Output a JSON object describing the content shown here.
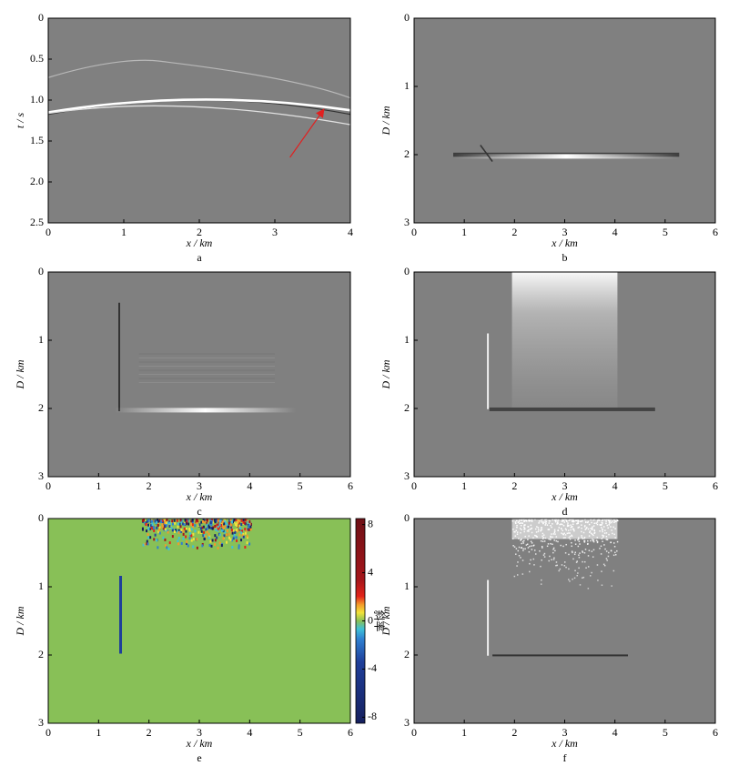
{
  "chart_data": [
    {
      "type": "image",
      "caption": "a",
      "xlabel": "x / km",
      "ylabel": "t / s",
      "xlim": [
        0,
        4
      ],
      "ylim": [
        0,
        2.5
      ],
      "invert_y": true,
      "xticks": [
        0,
        1,
        2,
        3,
        4
      ],
      "yticks": [
        0,
        0.5,
        {
          "value": 1,
          "label": "1.0"
        },
        1.5,
        {
          "value": 2,
          "label": "2.0"
        },
        2.5
      ]
    },
    {
      "type": "image",
      "caption": "b",
      "xlabel": "x / km",
      "ylabel": "D / km",
      "xlim": [
        0,
        6
      ],
      "ylim": [
        0,
        3
      ],
      "invert_y": true,
      "xticks": [
        0,
        1,
        2,
        3,
        4,
        5,
        6
      ],
      "yticks": [
        0,
        1,
        2,
        3
      ]
    },
    {
      "type": "image",
      "caption": "c",
      "xlabel": "x / km",
      "ylabel": "D / km",
      "xlim": [
        0,
        6
      ],
      "ylim": [
        0,
        3
      ],
      "invert_y": true,
      "xticks": [
        0,
        1,
        2,
        3,
        4,
        5,
        6
      ],
      "yticks": [
        0,
        1,
        2,
        3
      ]
    },
    {
      "type": "image",
      "caption": "d",
      "xlabel": "x / km",
      "ylabel": "D / km",
      "xlim": [
        0,
        6
      ],
      "ylim": [
        0,
        3
      ],
      "invert_y": true,
      "xticks": [
        0,
        1,
        2,
        3,
        4,
        5,
        6
      ],
      "yticks": [
        0,
        1,
        2,
        3
      ]
    },
    {
      "type": "image",
      "caption": "e",
      "xlabel": "x / km",
      "ylabel": "D / km",
      "xlim": [
        0,
        6
      ],
      "ylim": [
        0,
        3
      ],
      "invert_y": true,
      "xticks": [
        0,
        1,
        2,
        3,
        4,
        5,
        6
      ],
      "yticks": [
        0,
        1,
        2,
        3
      ],
      "colorbar": {
        "label": "斜率",
        "lim": [
          -8.5,
          8.5
        ],
        "ticks": [
          8,
          4,
          0,
          -4,
          -8
        ]
      }
    },
    {
      "type": "image",
      "caption": "f",
      "xlabel": "x / km",
      "ylabel": "D / km",
      "xlim": [
        0,
        6
      ],
      "ylim": [
        0,
        3
      ],
      "invert_y": true,
      "xticks": [
        0,
        1,
        2,
        3,
        4,
        5,
        6
      ],
      "yticks": [
        0,
        1,
        2,
        3
      ]
    }
  ]
}
